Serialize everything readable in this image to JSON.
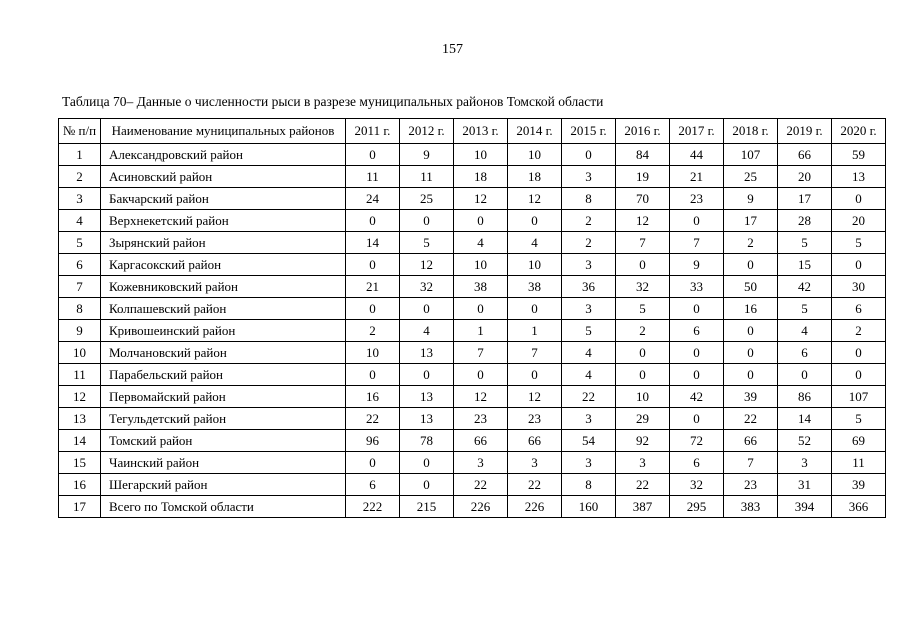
{
  "page": {
    "number": "157"
  },
  "table": {
    "caption": "Таблица 70– Данные о численности рыси в разрезе муниципальных районов Томской области",
    "headers": [
      "№ п/п",
      "Наименование муниципальных районов",
      "2011 г.",
      "2012 г.",
      "2013 г.",
      "2014 г.",
      "2015 г.",
      "2016 г.",
      "2017 г.",
      "2018 г.",
      "2019 г.",
      "2020 г."
    ],
    "rows": [
      [
        "1",
        "Александровский район",
        "0",
        "9",
        "10",
        "10",
        "0",
        "84",
        "44",
        "107",
        "66",
        "59"
      ],
      [
        "2",
        "Асиновский район",
        "11",
        "11",
        "18",
        "18",
        "3",
        "19",
        "21",
        "25",
        "20",
        "13"
      ],
      [
        "3",
        "Бакчарский район",
        "24",
        "25",
        "12",
        "12",
        "8",
        "70",
        "23",
        "9",
        "17",
        "0"
      ],
      [
        "4",
        "Верхнекетский район",
        "0",
        "0",
        "0",
        "0",
        "2",
        "12",
        "0",
        "17",
        "28",
        "20"
      ],
      [
        "5",
        "Зырянский район",
        "14",
        "5",
        "4",
        "4",
        "2",
        "7",
        "7",
        "2",
        "5",
        "5"
      ],
      [
        "6",
        "Каргасокский район",
        "0",
        "12",
        "10",
        "10",
        "3",
        "0",
        "9",
        "0",
        "15",
        "0"
      ],
      [
        "7",
        "Кожевниковский район",
        "21",
        "32",
        "38",
        "38",
        "36",
        "32",
        "33",
        "50",
        "42",
        "30"
      ],
      [
        "8",
        "Колпашевский район",
        "0",
        "0",
        "0",
        "0",
        "3",
        "5",
        "0",
        "16",
        "5",
        "6"
      ],
      [
        "9",
        "Кривошеинский район",
        "2",
        "4",
        "1",
        "1",
        "5",
        "2",
        "6",
        "0",
        "4",
        "2"
      ],
      [
        "10",
        "Молчановский район",
        "10",
        "13",
        "7",
        "7",
        "4",
        "0",
        "0",
        "0",
        "6",
        "0"
      ],
      [
        "11",
        "Парабельский район",
        "0",
        "0",
        "0",
        "0",
        "4",
        "0",
        "0",
        "0",
        "0",
        "0"
      ],
      [
        "12",
        "Первомайский район",
        "16",
        "13",
        "12",
        "12",
        "22",
        "10",
        "42",
        "39",
        "86",
        "107"
      ],
      [
        "13",
        "Тегульдетский район",
        "22",
        "13",
        "23",
        "23",
        "3",
        "29",
        "0",
        "22",
        "14",
        "5"
      ],
      [
        "14",
        "Томский район",
        "96",
        "78",
        "66",
        "66",
        "54",
        "92",
        "72",
        "66",
        "52",
        "69"
      ],
      [
        "15",
        "Чаинский район",
        "0",
        "0",
        "3",
        "3",
        "3",
        "3",
        "6",
        "7",
        "3",
        "11"
      ],
      [
        "16",
        "Шегарский район",
        "6",
        "0",
        "22",
        "22",
        "8",
        "22",
        "32",
        "23",
        "31",
        "39"
      ],
      [
        "17",
        "Всего по Томской области",
        "222",
        "215",
        "226",
        "226",
        "160",
        "387",
        "295",
        "383",
        "394",
        "366"
      ]
    ]
  }
}
